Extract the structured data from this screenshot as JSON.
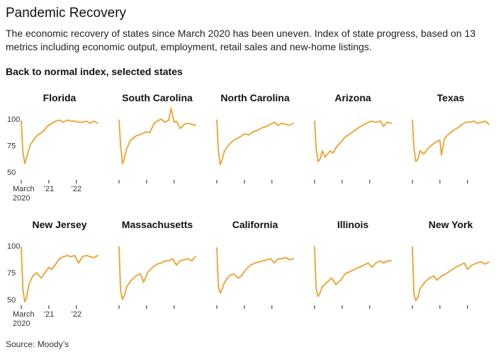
{
  "title": "Pandemic Recovery",
  "subtitle": "The economic recovery of states since March 2020 has been uneven. Index of state progress, based on 13 metrics including economic output, employment, retail sales and new-home listings.",
  "chart_label": "Back to normal index, selected states",
  "source": "Source: Moody’s",
  "line_color": "#f0a02a",
  "chart_data": {
    "type": "line",
    "title": "Back to normal index, selected states",
    "ylabel": "Back to normal index",
    "ylim": [
      50,
      100
    ],
    "yticks": [
      "100",
      "75",
      "50"
    ],
    "xticks": [
      "March 2020",
      "’21",
      "’22"
    ],
    "x_start": "March 2020",
    "x_end": "mid-2022",
    "series": [
      {
        "name": "Florida",
        "x": [
          0,
          0.02,
          0.045,
          0.07,
          0.12,
          0.2,
          0.28,
          0.34,
          0.4,
          0.45,
          0.5,
          0.55,
          0.6,
          0.65,
          0.7,
          0.75,
          0.8,
          0.85,
          0.9,
          0.95,
          1.0
        ],
        "values": [
          98,
          70,
          58,
          64,
          76,
          84,
          88,
          93,
          96,
          98,
          99,
          97,
          99,
          98,
          98,
          97,
          97,
          98,
          96,
          98,
          96
        ]
      },
      {
        "name": "South Carolina",
        "x": [
          0,
          0.02,
          0.045,
          0.07,
          0.1,
          0.15,
          0.22,
          0.3,
          0.35,
          0.4,
          0.46,
          0.5,
          0.55,
          0.6,
          0.65,
          0.68,
          0.72,
          0.75,
          0.8,
          0.85,
          0.9,
          0.95,
          1.0
        ],
        "values": [
          99,
          75,
          58,
          63,
          72,
          80,
          84,
          86,
          88,
          87,
          96,
          98,
          100,
          97,
          99,
          110,
          97,
          98,
          91,
          95,
          96,
          95,
          94
        ]
      },
      {
        "name": "North Carolina",
        "x": [
          0,
          0.02,
          0.045,
          0.07,
          0.1,
          0.16,
          0.22,
          0.3,
          0.36,
          0.42,
          0.48,
          0.55,
          0.6,
          0.65,
          0.7,
          0.75,
          0.8,
          0.85,
          0.9,
          0.95,
          1.0
        ],
        "values": [
          99,
          70,
          57,
          62,
          70,
          76,
          80,
          83,
          86,
          85,
          88,
          90,
          92,
          93,
          95,
          97,
          94,
          96,
          95,
          94,
          96
        ]
      },
      {
        "name": "Arizona",
        "x": [
          0,
          0.02,
          0.045,
          0.07,
          0.1,
          0.14,
          0.2,
          0.24,
          0.28,
          0.34,
          0.4,
          0.46,
          0.52,
          0.58,
          0.62,
          0.68,
          0.74,
          0.8,
          0.86,
          0.9,
          0.95,
          1.0
        ],
        "values": [
          98,
          72,
          60,
          62,
          70,
          64,
          70,
          68,
          73,
          78,
          83,
          86,
          89,
          92,
          94,
          96,
          98,
          97,
          98,
          93,
          97,
          96
        ]
      },
      {
        "name": "Texas",
        "x": [
          0,
          0.02,
          0.045,
          0.07,
          0.1,
          0.15,
          0.2,
          0.26,
          0.32,
          0.36,
          0.38,
          0.42,
          0.48,
          0.55,
          0.6,
          0.65,
          0.7,
          0.75,
          0.8,
          0.85,
          0.9,
          0.95,
          1.0
        ],
        "values": [
          99,
          72,
          60,
          62,
          70,
          67,
          72,
          76,
          79,
          80,
          66,
          82,
          86,
          90,
          92,
          95,
          97,
          97,
          98,
          96,
          97,
          98,
          95
        ]
      },
      {
        "name": "New Jersey",
        "x": [
          0,
          0.02,
          0.045,
          0.07,
          0.1,
          0.15,
          0.2,
          0.26,
          0.32,
          0.36,
          0.4,
          0.46,
          0.5,
          0.55,
          0.6,
          0.65,
          0.7,
          0.75,
          0.8,
          0.85,
          0.9,
          0.95,
          1.0
        ],
        "values": [
          99,
          60,
          48,
          52,
          64,
          72,
          75,
          70,
          76,
          80,
          78,
          84,
          88,
          90,
          91,
          90,
          91,
          84,
          90,
          91,
          90,
          89,
          91
        ]
      },
      {
        "name": "Massachusetts",
        "x": [
          0,
          0.02,
          0.045,
          0.07,
          0.1,
          0.16,
          0.22,
          0.28,
          0.32,
          0.38,
          0.44,
          0.5,
          0.55,
          0.6,
          0.65,
          0.7,
          0.75,
          0.8,
          0.85,
          0.9,
          0.95,
          1.0
        ],
        "values": [
          99,
          58,
          50,
          54,
          62,
          68,
          72,
          74,
          66,
          76,
          80,
          83,
          84,
          86,
          86,
          88,
          82,
          86,
          87,
          88,
          86,
          90
        ]
      },
      {
        "name": "California",
        "x": [
          0,
          0.02,
          0.045,
          0.07,
          0.1,
          0.16,
          0.22,
          0.28,
          0.32,
          0.38,
          0.44,
          0.5,
          0.55,
          0.6,
          0.65,
          0.7,
          0.75,
          0.8,
          0.85,
          0.9,
          0.95,
          1.0
        ],
        "values": [
          98,
          62,
          56,
          60,
          66,
          72,
          74,
          70,
          72,
          78,
          82,
          84,
          85,
          86,
          87,
          88,
          84,
          88,
          88,
          89,
          87,
          88
        ]
      },
      {
        "name": "Illinois",
        "x": [
          0,
          0.02,
          0.045,
          0.07,
          0.1,
          0.16,
          0.22,
          0.28,
          0.34,
          0.4,
          0.46,
          0.52,
          0.58,
          0.64,
          0.7,
          0.75,
          0.8,
          0.86,
          0.9,
          0.95,
          1.0
        ],
        "values": [
          99,
          60,
          53,
          56,
          62,
          66,
          70,
          64,
          68,
          74,
          76,
          78,
          80,
          82,
          84,
          80,
          84,
          86,
          84,
          86,
          86
        ]
      },
      {
        "name": "New York",
        "x": [
          0,
          0.02,
          0.045,
          0.07,
          0.1,
          0.16,
          0.22,
          0.28,
          0.32,
          0.38,
          0.44,
          0.5,
          0.56,
          0.62,
          0.68,
          0.72,
          0.78,
          0.84,
          0.9,
          0.95,
          1.0
        ],
        "values": [
          99,
          55,
          49,
          52,
          60,
          66,
          70,
          72,
          68,
          72,
          74,
          77,
          80,
          82,
          84,
          78,
          82,
          84,
          85,
          83,
          85
        ]
      }
    ]
  }
}
